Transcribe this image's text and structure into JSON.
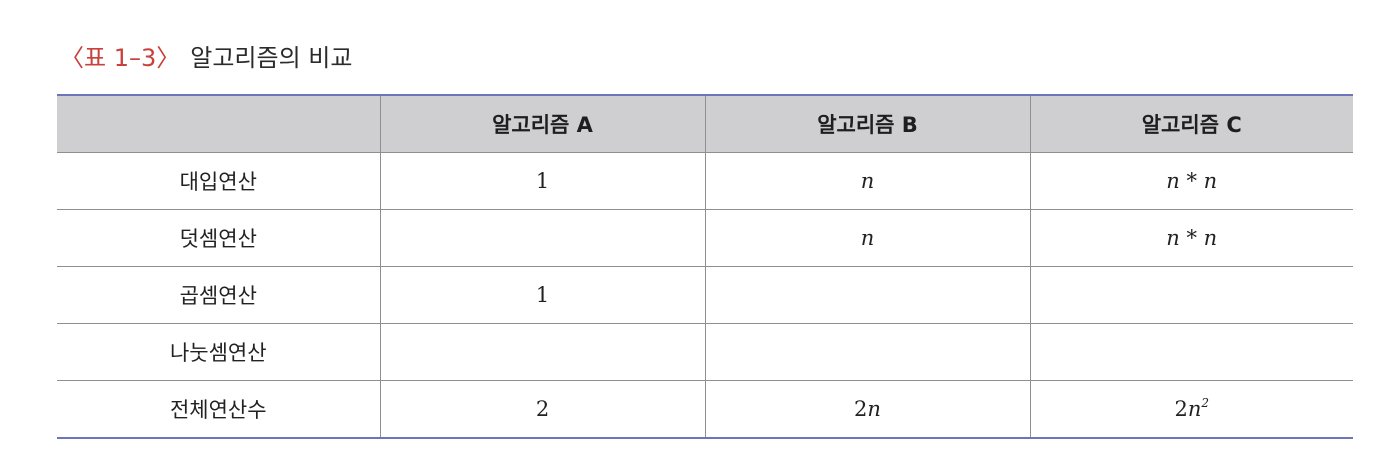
{
  "caption": {
    "label": "〈표 1–3〉",
    "title": "알고리즘의 비교"
  },
  "table": {
    "header": [
      "",
      "알고리즘 A",
      "알고리즘 B",
      "알고리즘 C"
    ],
    "rows": [
      {
        "label": "대입연산",
        "cells": [
          {
            "text": "1",
            "italic": false
          },
          {
            "text": "n",
            "italic": true
          },
          {
            "text": "n * n",
            "italic": true
          }
        ]
      },
      {
        "label": "덧셈연산",
        "cells": [
          {
            "text": "",
            "italic": false
          },
          {
            "text": "n",
            "italic": true
          },
          {
            "text": "n * n",
            "italic": true
          }
        ]
      },
      {
        "label": "곱셈연산",
        "cells": [
          {
            "text": "1",
            "italic": false
          },
          {
            "text": "",
            "italic": false
          },
          {
            "text": "",
            "italic": false
          }
        ]
      },
      {
        "label": "나눗셈연산",
        "cells": [
          {
            "text": "",
            "italic": false
          },
          {
            "text": "",
            "italic": false
          },
          {
            "text": "",
            "italic": false
          }
        ]
      },
      {
        "label": "전체연산수",
        "cells": [
          {
            "text": "2",
            "italic": false
          },
          {
            "coef": "2",
            "var": "n",
            "italic": true
          },
          {
            "coef": "2",
            "var": "n",
            "exp": "2",
            "italic": true
          }
        ]
      }
    ]
  },
  "colors": {
    "caption_label": "#c8413b",
    "header_bg": "#cfcfd1",
    "rule_accent": "#6d74b8",
    "grid": "#8f8f8f"
  }
}
